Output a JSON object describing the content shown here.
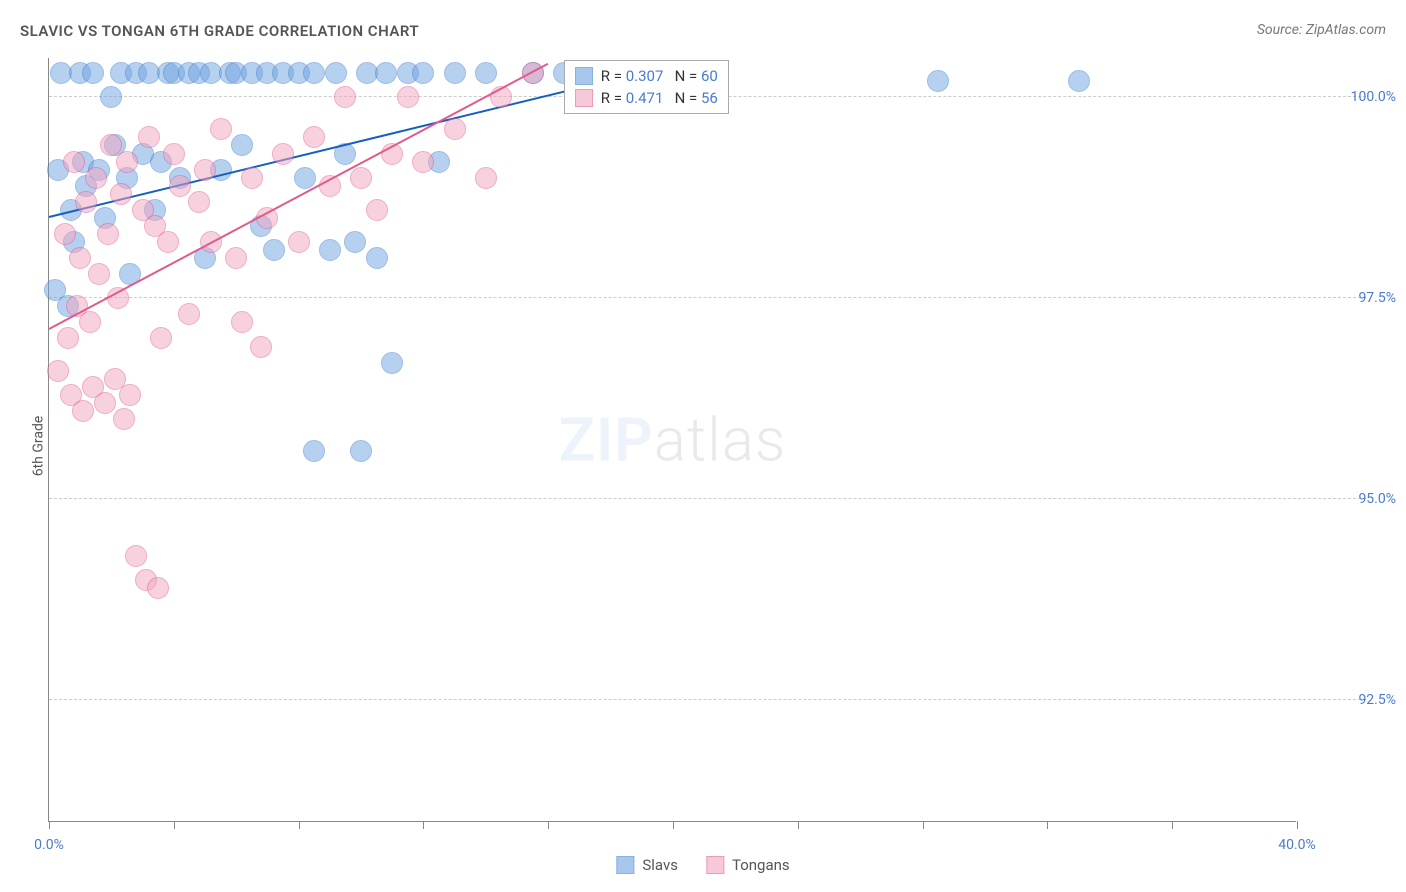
{
  "title": "SLAVIC VS TONGAN 6TH GRADE CORRELATION CHART",
  "source": "Source: ZipAtlas.com",
  "y_axis_label": "6th Grade",
  "watermark_bold": "ZIP",
  "watermark_light": "atlas",
  "chart": {
    "type": "scatter",
    "xlim": [
      0,
      40
    ],
    "ylim": [
      91,
      100.5
    ],
    "x_ticks": [
      0,
      4,
      8,
      12,
      16,
      20,
      24,
      28,
      32,
      36,
      40
    ],
    "x_tick_labels": {
      "0": "0.0%",
      "40": "40.0%"
    },
    "y_gridlines": [
      92.5,
      95.0,
      97.5,
      100.0
    ],
    "y_tick_labels": [
      "92.5%",
      "95.0%",
      "97.5%",
      "100.0%"
    ],
    "grid_color": "#cccccc",
    "axis_color": "#888888",
    "background_color": "#ffffff",
    "label_fontsize": 14,
    "label_color": "#4a7bd0",
    "dot_radius": 11,
    "dot_opacity": 0.5,
    "series": [
      {
        "name": "Slavs",
        "fill_color": "#6fa3e0",
        "stroke_color": "#3d7cc9",
        "line_color": "#1560bd",
        "r_value": "0.307",
        "n_value": "60",
        "trend": {
          "x1": 0,
          "y1": 98.5,
          "x2": 18,
          "y2": 100.2
        },
        "points": [
          [
            0.2,
            97.6
          ],
          [
            0.3,
            99.1
          ],
          [
            0.4,
            100.3
          ],
          [
            0.6,
            97.4
          ],
          [
            0.7,
            98.6
          ],
          [
            0.8,
            98.2
          ],
          [
            1.0,
            100.3
          ],
          [
            1.1,
            99.2
          ],
          [
            1.2,
            98.9
          ],
          [
            1.4,
            100.3
          ],
          [
            1.6,
            99.1
          ],
          [
            1.8,
            98.5
          ],
          [
            2.0,
            100.0
          ],
          [
            2.1,
            99.4
          ],
          [
            2.3,
            100.3
          ],
          [
            2.5,
            99.0
          ],
          [
            2.6,
            97.8
          ],
          [
            2.8,
            100.3
          ],
          [
            3.0,
            99.3
          ],
          [
            3.2,
            100.3
          ],
          [
            3.4,
            98.6
          ],
          [
            3.6,
            99.2
          ],
          [
            3.8,
            100.3
          ],
          [
            4.0,
            100.3
          ],
          [
            4.2,
            99.0
          ],
          [
            4.5,
            100.3
          ],
          [
            4.8,
            100.3
          ],
          [
            5.0,
            98.0
          ],
          [
            5.2,
            100.3
          ],
          [
            5.5,
            99.1
          ],
          [
            5.8,
            100.3
          ],
          [
            6.0,
            100.3
          ],
          [
            6.2,
            99.4
          ],
          [
            6.5,
            100.3
          ],
          [
            6.8,
            98.4
          ],
          [
            7.0,
            100.3
          ],
          [
            7.2,
            98.1
          ],
          [
            7.5,
            100.3
          ],
          [
            8.0,
            100.3
          ],
          [
            8.2,
            99.0
          ],
          [
            8.5,
            100.3
          ],
          [
            9.0,
            98.1
          ],
          [
            9.2,
            100.3
          ],
          [
            9.5,
            99.3
          ],
          [
            9.8,
            98.2
          ],
          [
            10.0,
            95.6
          ],
          [
            10.2,
            100.3
          ],
          [
            10.5,
            98.0
          ],
          [
            10.8,
            100.3
          ],
          [
            11.0,
            96.7
          ],
          [
            11.5,
            100.3
          ],
          [
            12.0,
            100.3
          ],
          [
            12.5,
            99.2
          ],
          [
            13.0,
            100.3
          ],
          [
            14.0,
            100.3
          ],
          [
            15.5,
            100.3
          ],
          [
            16.5,
            100.3
          ],
          [
            28.5,
            100.2
          ],
          [
            33.0,
            100.2
          ],
          [
            8.5,
            95.6
          ]
        ]
      },
      {
        "name": "Tongans",
        "fill_color": "#f2a5c0",
        "stroke_color": "#e05a8c",
        "line_color": "#e05a8c",
        "r_value": "0.471",
        "n_value": "56",
        "trend": {
          "x1": 0,
          "y1": 97.1,
          "x2": 16,
          "y2": 100.4
        },
        "points": [
          [
            0.3,
            96.6
          ],
          [
            0.5,
            98.3
          ],
          [
            0.6,
            97.0
          ],
          [
            0.7,
            96.3
          ],
          [
            0.8,
            99.2
          ],
          [
            0.9,
            97.4
          ],
          [
            1.0,
            98.0
          ],
          [
            1.1,
            96.1
          ],
          [
            1.2,
            98.7
          ],
          [
            1.3,
            97.2
          ],
          [
            1.4,
            96.4
          ],
          [
            1.5,
            99.0
          ],
          [
            1.6,
            97.8
          ],
          [
            1.8,
            96.2
          ],
          [
            1.9,
            98.3
          ],
          [
            2.0,
            99.4
          ],
          [
            2.1,
            96.5
          ],
          [
            2.2,
            97.5
          ],
          [
            2.3,
            98.8
          ],
          [
            2.4,
            96.0
          ],
          [
            2.5,
            99.2
          ],
          [
            2.6,
            96.3
          ],
          [
            2.8,
            94.3
          ],
          [
            3.0,
            98.6
          ],
          [
            3.1,
            94.0
          ],
          [
            3.2,
            99.5
          ],
          [
            3.4,
            98.4
          ],
          [
            3.5,
            93.9
          ],
          [
            3.6,
            97.0
          ],
          [
            3.8,
            98.2
          ],
          [
            4.0,
            99.3
          ],
          [
            4.2,
            98.9
          ],
          [
            4.5,
            97.3
          ],
          [
            4.8,
            98.7
          ],
          [
            5.0,
            99.1
          ],
          [
            5.2,
            98.2
          ],
          [
            5.5,
            99.6
          ],
          [
            6.0,
            98.0
          ],
          [
            6.2,
            97.2
          ],
          [
            6.5,
            99.0
          ],
          [
            6.8,
            96.9
          ],
          [
            7.0,
            98.5
          ],
          [
            7.5,
            99.3
          ],
          [
            8.0,
            98.2
          ],
          [
            8.5,
            99.5
          ],
          [
            9.0,
            98.9
          ],
          [
            9.5,
            100.0
          ],
          [
            10.0,
            99.0
          ],
          [
            10.5,
            98.6
          ],
          [
            11.0,
            99.3
          ],
          [
            11.5,
            100.0
          ],
          [
            12.0,
            99.2
          ],
          [
            13.0,
            99.6
          ],
          [
            14.0,
            99.0
          ],
          [
            14.5,
            100.0
          ],
          [
            15.5,
            100.3
          ]
        ]
      }
    ],
    "legend_box": {
      "label_r": "R =",
      "label_n": "N ="
    },
    "bottom_legend": [
      "Slavs",
      "Tongans"
    ]
  }
}
